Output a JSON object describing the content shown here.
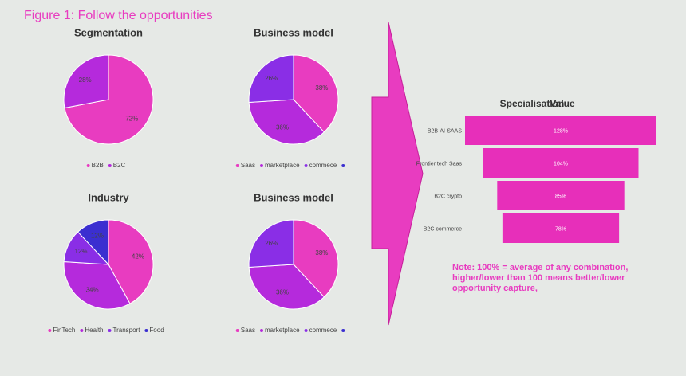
{
  "title": "Figure 1: Follow the opportunities",
  "note": [
    "Note: 100% = average of any   combination,",
    "higher/lower than 100  means better/lower",
    "opportunity  capture,"
  ],
  "chart_data": [
    {
      "type": "pie",
      "title": "Segmentation",
      "categories": [
        "B2B",
        "B2C"
      ],
      "values": [
        72,
        28
      ],
      "value_labels": [
        "72%",
        "28%"
      ],
      "colors": [
        "#e83cc0",
        "#b52adc"
      ]
    },
    {
      "type": "pie",
      "title": "Business model",
      "categories": [
        "Saas",
        "marketplace",
        "commece",
        null
      ],
      "values": [
        38,
        36,
        26,
        0
      ],
      "value_labels": [
        "38%",
        "36%",
        "26%",
        null
      ],
      "colors": [
        "#e83cc0",
        "#b52adc",
        "#8a2ee6",
        "#3b2fd0"
      ]
    },
    {
      "type": "pie",
      "title": "Industry",
      "categories": [
        "FinTech",
        "Health",
        "Transport",
        "Food"
      ],
      "values": [
        42,
        34,
        12,
        12
      ],
      "value_labels": [
        "42%",
        "34%",
        "12%",
        "12%"
      ],
      "colors": [
        "#e83cc0",
        "#b52adc",
        "#8a2ee6",
        "#3b2fd0"
      ]
    },
    {
      "type": "pie",
      "title": "Business model",
      "categories": [
        "Saas",
        "marketplace",
        "commece",
        null
      ],
      "values": [
        38,
        36,
        26,
        0
      ],
      "value_labels": [
        "38%",
        "36%",
        "26%",
        null
      ],
      "colors": [
        "#e83cc0",
        "#b52adc",
        "#8a2ee6",
        "#3b2fd0"
      ]
    },
    {
      "type": "funnel",
      "title": "Specialisation",
      "subtitle": "Value",
      "categories": [
        "B2B-AI-SAAS",
        "Frontier tech Saas",
        "B2C crypto",
        "B2C commerce"
      ],
      "values": [
        128,
        104,
        85,
        78
      ],
      "value_labels": [
        "128%",
        "104%",
        "85%",
        "78%"
      ],
      "color": "#e72fba"
    }
  ]
}
